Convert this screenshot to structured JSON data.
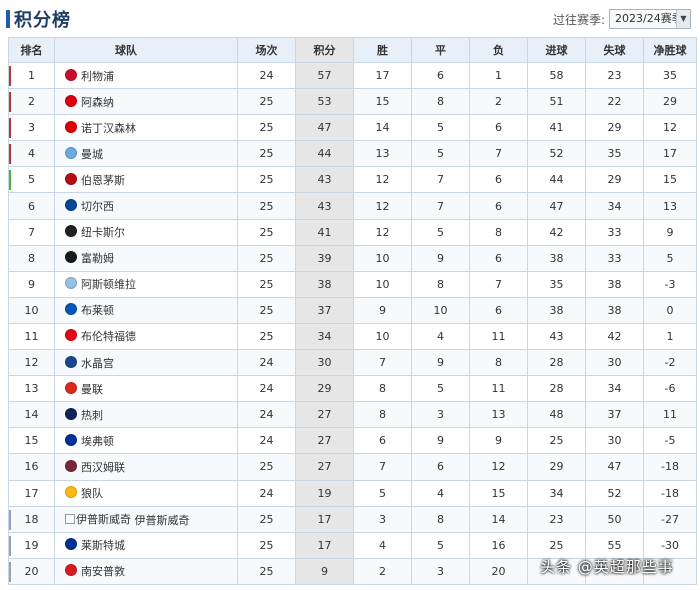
{
  "page": {
    "title": "积分榜",
    "season_label": "过往赛季:",
    "season_value": "2023/24赛季"
  },
  "columns": {
    "rank": "排名",
    "team": "球队",
    "played": "场次",
    "points": "积分",
    "wins": "胜",
    "draws": "平",
    "losses": "负",
    "goals_for": "进球",
    "goals_against": "失球",
    "goal_diff": "净胜球"
  },
  "rows": [
    {
      "rank": "1",
      "team": "利物浦",
      "played": "24",
      "points": "57",
      "wins": "17",
      "draws": "6",
      "losses": "1",
      "goals_for": "58",
      "goals_against": "23",
      "goal_diff": "35",
      "badge_color": "#c8102e",
      "zone_color": "#b03a3a"
    },
    {
      "rank": "2",
      "team": "阿森纳",
      "played": "25",
      "points": "53",
      "wins": "15",
      "draws": "8",
      "losses": "2",
      "goals_for": "51",
      "goals_against": "22",
      "goal_diff": "29",
      "badge_color": "#db0007",
      "zone_color": "#b03a3a"
    },
    {
      "rank": "3",
      "team": "诺丁汉森林",
      "played": "25",
      "points": "47",
      "wins": "14",
      "draws": "5",
      "losses": "6",
      "goals_for": "41",
      "goals_against": "29",
      "goal_diff": "12",
      "badge_color": "#dd0000",
      "zone_color": "#b03a3a"
    },
    {
      "rank": "4",
      "team": "曼城",
      "played": "25",
      "points": "44",
      "wins": "13",
      "draws": "5",
      "losses": "7",
      "goals_for": "52",
      "goals_against": "35",
      "goal_diff": "17",
      "badge_color": "#6cabdd",
      "zone_color": "#b03a3a"
    },
    {
      "rank": "5",
      "team": "伯恩茅斯",
      "played": "25",
      "points": "43",
      "wins": "12",
      "draws": "7",
      "losses": "6",
      "goals_for": "44",
      "goals_against": "29",
      "goal_diff": "15",
      "badge_color": "#b50e12",
      "zone_color": "#4caf50"
    },
    {
      "rank": "6",
      "team": "切尔西",
      "played": "25",
      "points": "43",
      "wins": "12",
      "draws": "7",
      "losses": "6",
      "goals_for": "47",
      "goals_against": "34",
      "goal_diff": "13",
      "badge_color": "#034694",
      "zone_color": ""
    },
    {
      "rank": "7",
      "team": "纽卡斯尔",
      "played": "25",
      "points": "41",
      "wins": "12",
      "draws": "5",
      "losses": "8",
      "goals_for": "42",
      "goals_against": "33",
      "goal_diff": "9",
      "badge_color": "#241f20",
      "zone_color": ""
    },
    {
      "rank": "8",
      "team": "富勒姆",
      "played": "25",
      "points": "39",
      "wins": "10",
      "draws": "9",
      "losses": "6",
      "goals_for": "38",
      "goals_against": "33",
      "goal_diff": "5",
      "badge_color": "#1a1a1a",
      "zone_color": ""
    },
    {
      "rank": "9",
      "team": "阿斯顿维拉",
      "played": "25",
      "points": "38",
      "wins": "10",
      "draws": "8",
      "losses": "7",
      "goals_for": "35",
      "goals_against": "38",
      "goal_diff": "-3",
      "badge_color": "#95bfe5",
      "zone_color": ""
    },
    {
      "rank": "10",
      "team": "布莱顿",
      "played": "25",
      "points": "37",
      "wins": "9",
      "draws": "10",
      "losses": "6",
      "goals_for": "38",
      "goals_against": "38",
      "goal_diff": "0",
      "badge_color": "#0057b8",
      "zone_color": ""
    },
    {
      "rank": "11",
      "team": "布伦特福德",
      "played": "25",
      "points": "34",
      "wins": "10",
      "draws": "4",
      "losses": "11",
      "goals_for": "43",
      "goals_against": "42",
      "goal_diff": "1",
      "badge_color": "#e30613",
      "zone_color": ""
    },
    {
      "rank": "12",
      "team": "水晶宫",
      "played": "24",
      "points": "30",
      "wins": "7",
      "draws": "9",
      "losses": "8",
      "goals_for": "28",
      "goals_against": "30",
      "goal_diff": "-2",
      "badge_color": "#1b458f",
      "zone_color": ""
    },
    {
      "rank": "13",
      "team": "曼联",
      "played": "24",
      "points": "29",
      "wins": "8",
      "draws": "5",
      "losses": "11",
      "goals_for": "28",
      "goals_against": "34",
      "goal_diff": "-6",
      "badge_color": "#da291c",
      "zone_color": ""
    },
    {
      "rank": "14",
      "team": "热刺",
      "played": "24",
      "points": "27",
      "wins": "8",
      "draws": "3",
      "losses": "13",
      "goals_for": "48",
      "goals_against": "37",
      "goal_diff": "11",
      "badge_color": "#132257",
      "zone_color": ""
    },
    {
      "rank": "15",
      "team": "埃弗顿",
      "played": "24",
      "points": "27",
      "wins": "6",
      "draws": "9",
      "losses": "9",
      "goals_for": "25",
      "goals_against": "30",
      "goal_diff": "-5",
      "badge_color": "#003399",
      "zone_color": ""
    },
    {
      "rank": "16",
      "team": "西汉姆联",
      "played": "25",
      "points": "27",
      "wins": "7",
      "draws": "6",
      "losses": "12",
      "goals_for": "29",
      "goals_against": "47",
      "goal_diff": "-18",
      "badge_color": "#7a263a",
      "zone_color": ""
    },
    {
      "rank": "17",
      "team": "狼队",
      "played": "24",
      "points": "19",
      "wins": "5",
      "draws": "4",
      "losses": "15",
      "goals_for": "34",
      "goals_against": "52",
      "goal_diff": "-18",
      "badge_color": "#fdb913",
      "zone_color": ""
    },
    {
      "rank": "18",
      "team": "伊普斯威奇",
      "broken_alt": "伊普斯威奇",
      "played": "25",
      "points": "17",
      "wins": "3",
      "draws": "8",
      "losses": "14",
      "goals_for": "23",
      "goals_against": "50",
      "goal_diff": "-27",
      "badge_color": "",
      "zone_color": "#9aa3ad"
    },
    {
      "rank": "19",
      "team": "莱斯特城",
      "played": "25",
      "points": "17",
      "wins": "4",
      "draws": "5",
      "losses": "16",
      "goals_for": "25",
      "goals_against": "55",
      "goal_diff": "-30",
      "badge_color": "#003090",
      "zone_color": "#9aa3ad"
    },
    {
      "rank": "20",
      "team": "南安普敦",
      "played": "25",
      "points": "9",
      "wins": "2",
      "draws": "3",
      "losses": "20",
      "goals_for": "",
      "goals_against": "",
      "goal_diff": "",
      "badge_color": "#d71920",
      "zone_color": "#9aa3ad"
    }
  ],
  "watermark": "头条 @英超那些事"
}
